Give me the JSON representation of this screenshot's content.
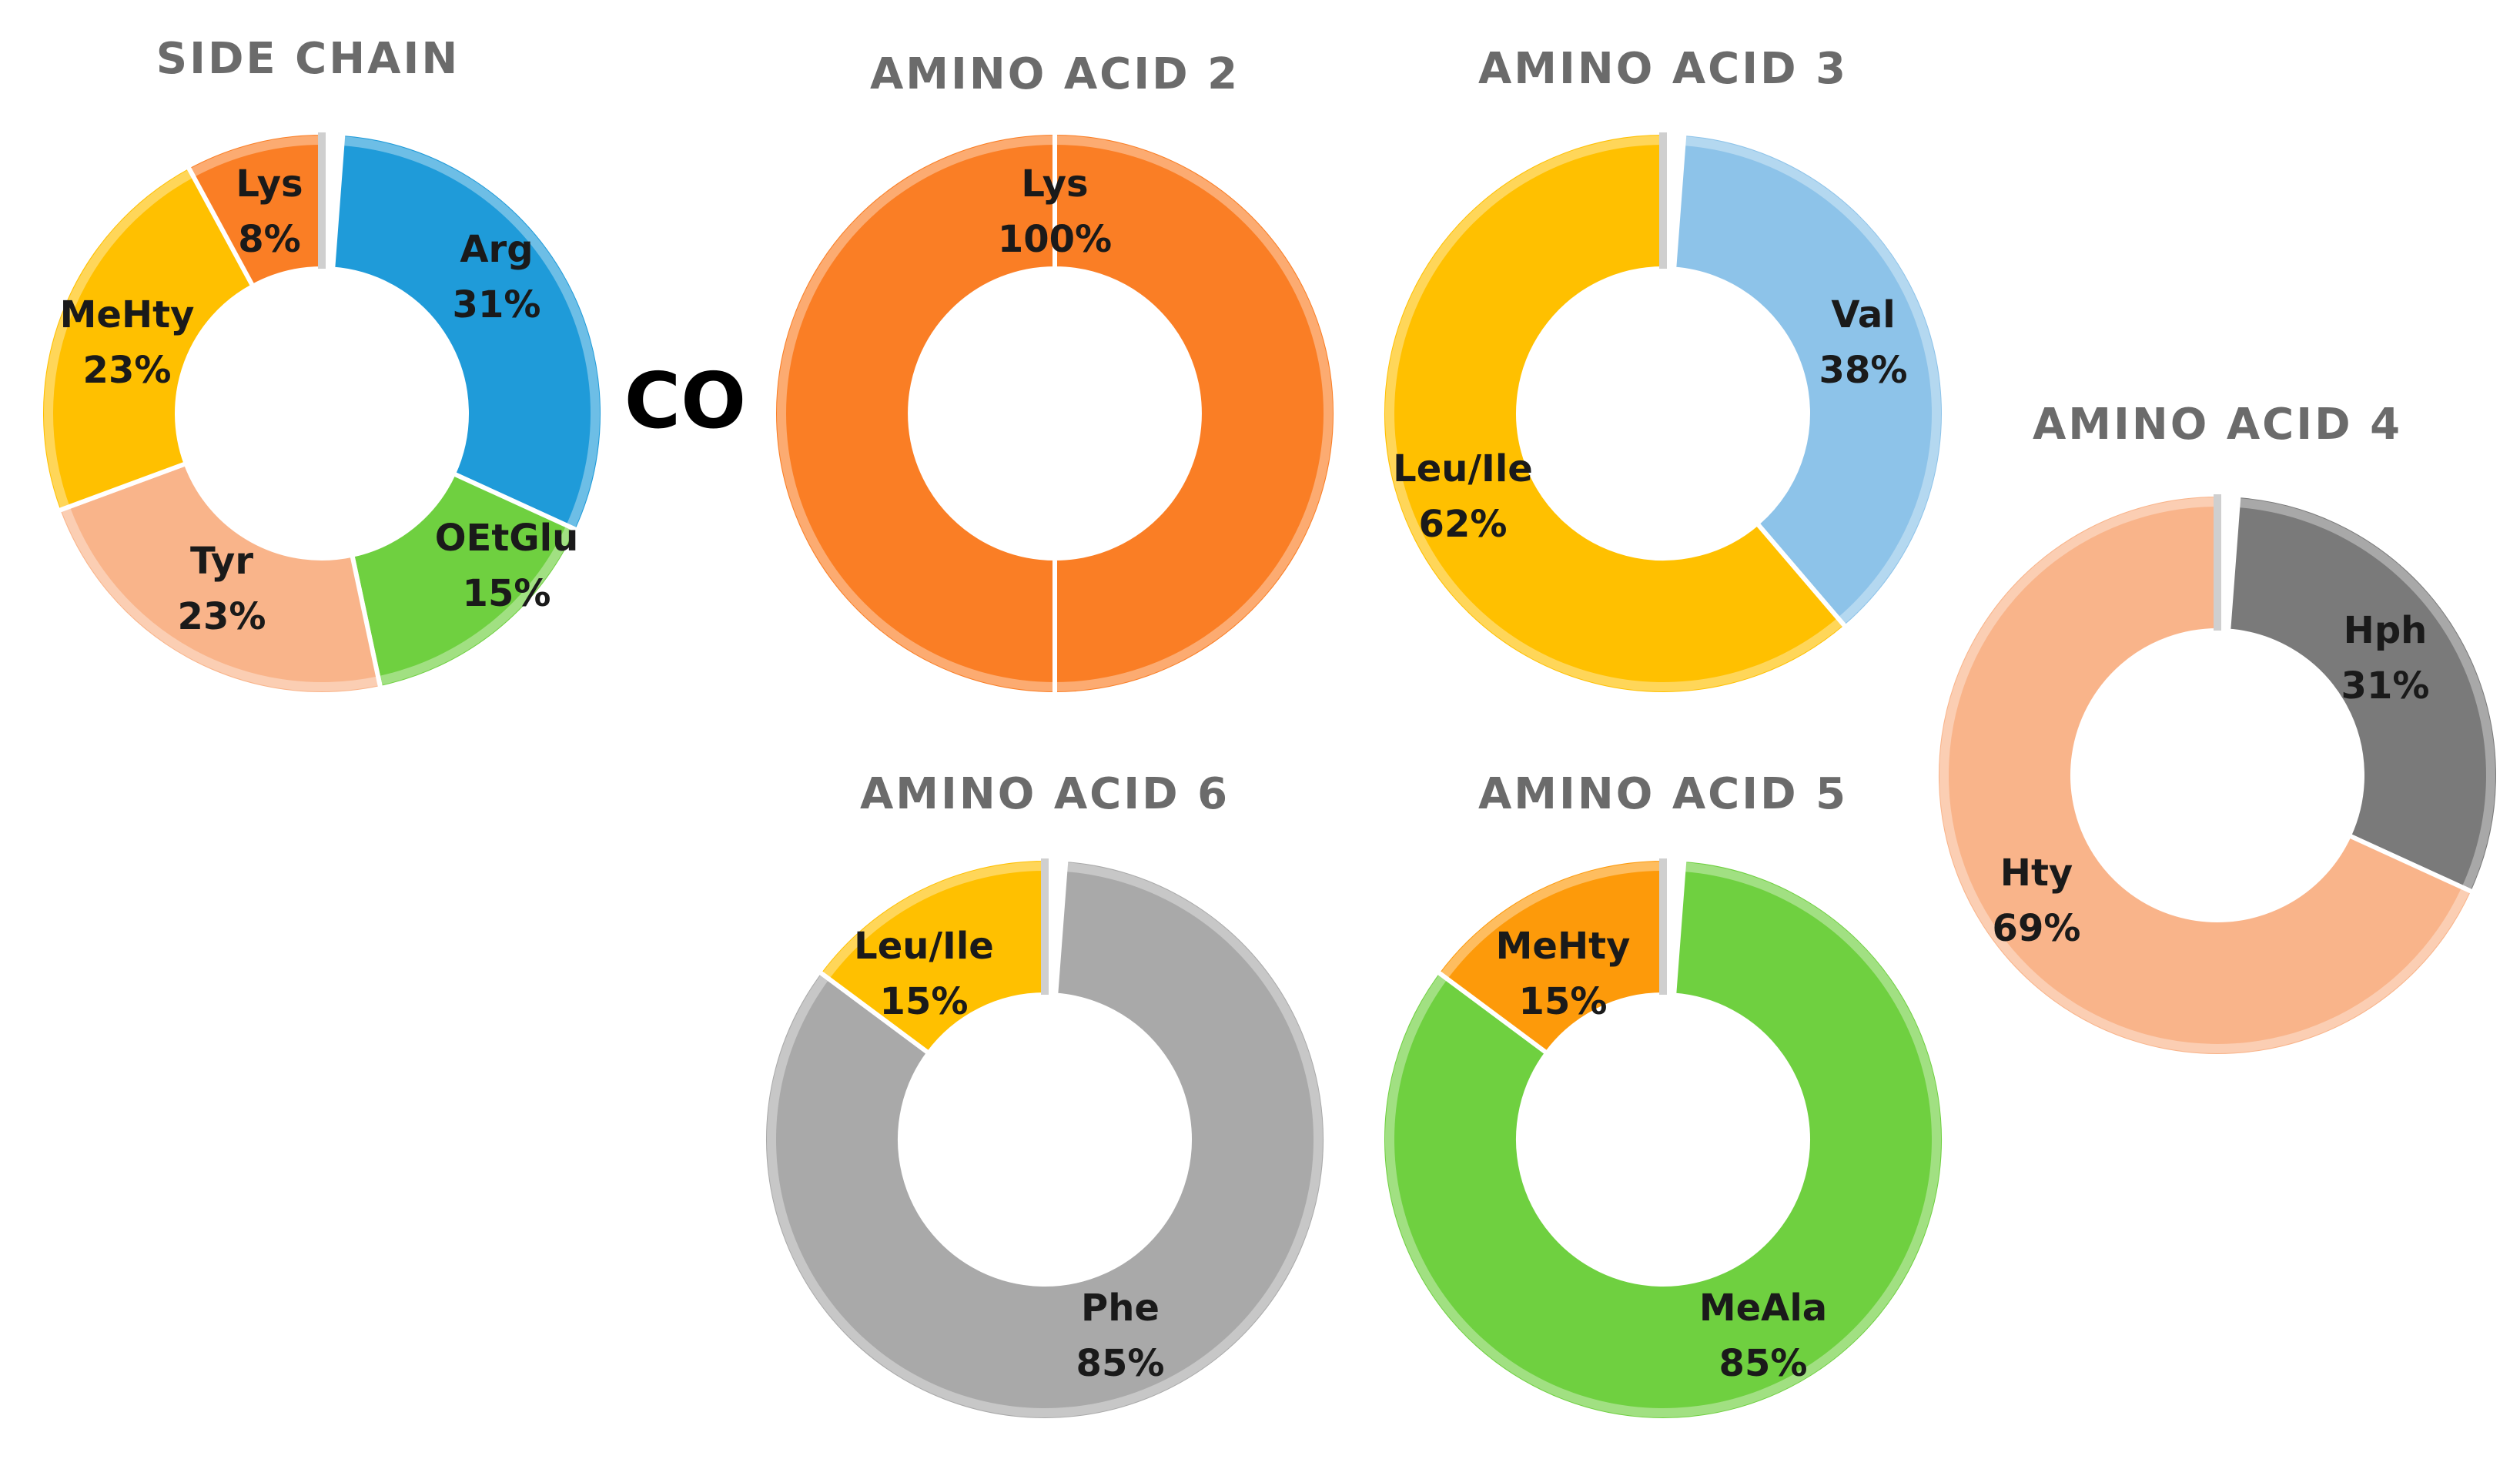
{
  "connector_label": "CO",
  "chart_data": [
    {
      "type": "pie",
      "variant": "donut",
      "title": "SIDE CHAIN",
      "series": [
        {
          "name": "Arg",
          "value": 31,
          "label": "31%",
          "color": "#1f9bd9"
        },
        {
          "name": "OEtGlu",
          "value": 15,
          "label": "15%",
          "color": "#6fd040"
        },
        {
          "name": "Tyr",
          "value": 23,
          "label": "23%",
          "color": "#f9b48a"
        },
        {
          "name": "MeHty",
          "value": 23,
          "label": "23%",
          "color": "#ffc000"
        },
        {
          "name": "Lys",
          "value": 8,
          "label": "8%",
          "color": "#fa7e25"
        }
      ]
    },
    {
      "type": "pie",
      "variant": "donut",
      "title": "AMINO ACID 2",
      "series": [
        {
          "name": "Lys",
          "value": 100,
          "label": "100%",
          "color": "#fa7e25"
        }
      ]
    },
    {
      "type": "pie",
      "variant": "donut",
      "title": "AMINO ACID 3",
      "series": [
        {
          "name": "Val",
          "value": 38,
          "label": "38%",
          "color": "#8dc3e9"
        },
        {
          "name": "Leu/Ile",
          "value": 62,
          "label": "62%",
          "color": "#ffc000"
        }
      ]
    },
    {
      "type": "pie",
      "variant": "donut",
      "title": "AMINO ACID 4",
      "series": [
        {
          "name": "Hph",
          "value": 31,
          "label": "31%",
          "color": "#7a7a7a"
        },
        {
          "name": "Hty",
          "value": 69,
          "label": "69%",
          "color": "#f9b48a"
        }
      ]
    },
    {
      "type": "pie",
      "variant": "donut",
      "title": "AMINO ACID 5",
      "series": [
        {
          "name": "MeAla",
          "value": 85,
          "label": "85%",
          "color": "#6fd040"
        },
        {
          "name": "MeHty",
          "value": 15,
          "label": "15%",
          "color": "#fd9a0a"
        }
      ]
    },
    {
      "type": "pie",
      "variant": "donut",
      "title": "AMINO ACID 6",
      "series": [
        {
          "name": "Phe",
          "value": 85,
          "label": "85%",
          "color": "#a9a9a9"
        },
        {
          "name": "Leu/Ile",
          "value": 15,
          "label": "15%",
          "color": "#ffc000"
        }
      ]
    }
  ]
}
